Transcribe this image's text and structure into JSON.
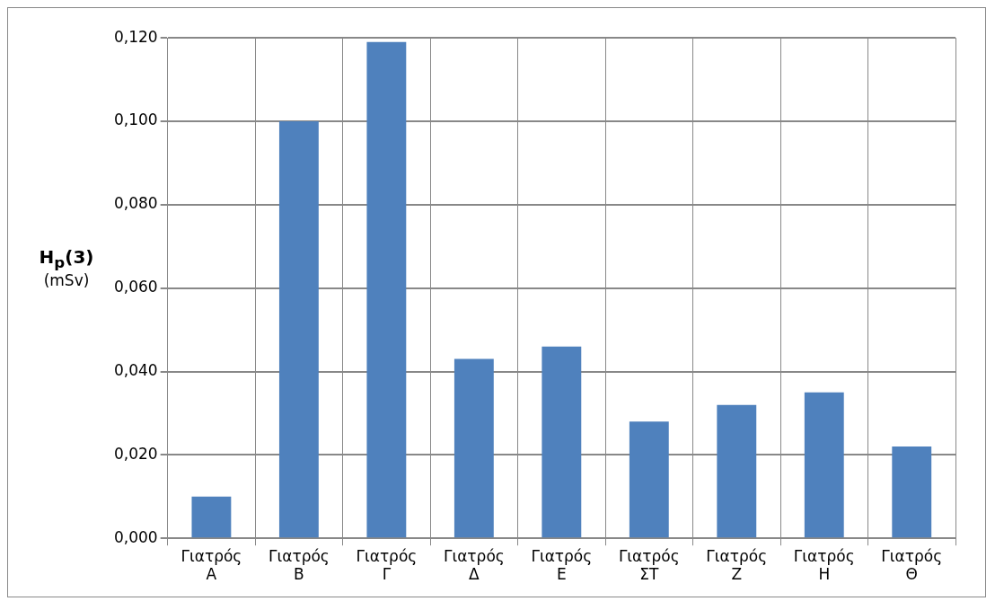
{
  "chart_data": {
    "type": "bar",
    "ylabel": "H$_{p}$(3) (mSv)",
    "categories": [
      "Γιατρός Α",
      "Γιατρός Β",
      "Γιατρός Γ",
      "Γιατρός Δ",
      "Γιατρός Ε",
      "Γιατρός ΣΤ",
      "Γιατρός Ζ",
      "Γιατρός Η",
      "Γιατρός Θ"
    ],
    "values": [
      0.01,
      0.1,
      0.119,
      0.043,
      0.046,
      0.028,
      0.032,
      0.035,
      0.022
    ],
    "color": "#4f81bd",
    "ylim": [
      0,
      0.12
    ],
    "yticks": [
      {
        "value": 0,
        "label": "0,000"
      },
      {
        "value": 0.02,
        "label": "0,020"
      },
      {
        "value": 0.04,
        "label": "0,040"
      },
      {
        "value": 0.06,
        "label": "0,060"
      },
      {
        "value": 0.08,
        "label": "0,080"
      },
      {
        "value": 0.1,
        "label": "0,100"
      },
      {
        "value": 0.12,
        "label": "0,120"
      }
    ],
    "grid": true
  }
}
